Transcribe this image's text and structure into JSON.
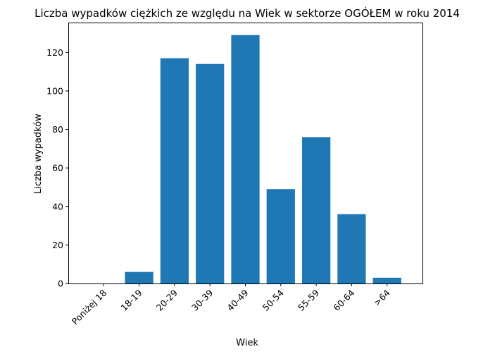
{
  "chart_data": {
    "type": "bar",
    "title": "Liczba wypadków ciężkich ze względu na Wiek w sektorze OGÓŁEM   w roku 2014",
    "xlabel": "Wiek",
    "ylabel": "Liczba wypadków",
    "categories": [
      "Poniżej 18",
      "18-19",
      "20-29",
      "30-39",
      "40-49",
      "50-54",
      "55-59",
      "60-64",
      ">64"
    ],
    "values": [
      0,
      6,
      117,
      114,
      129,
      49,
      76,
      36,
      3
    ],
    "ylim": [
      0,
      135.5
    ],
    "yticks": [
      0,
      20,
      40,
      60,
      80,
      100,
      120
    ],
    "grid": false,
    "bar_color": "#1f77b4"
  }
}
